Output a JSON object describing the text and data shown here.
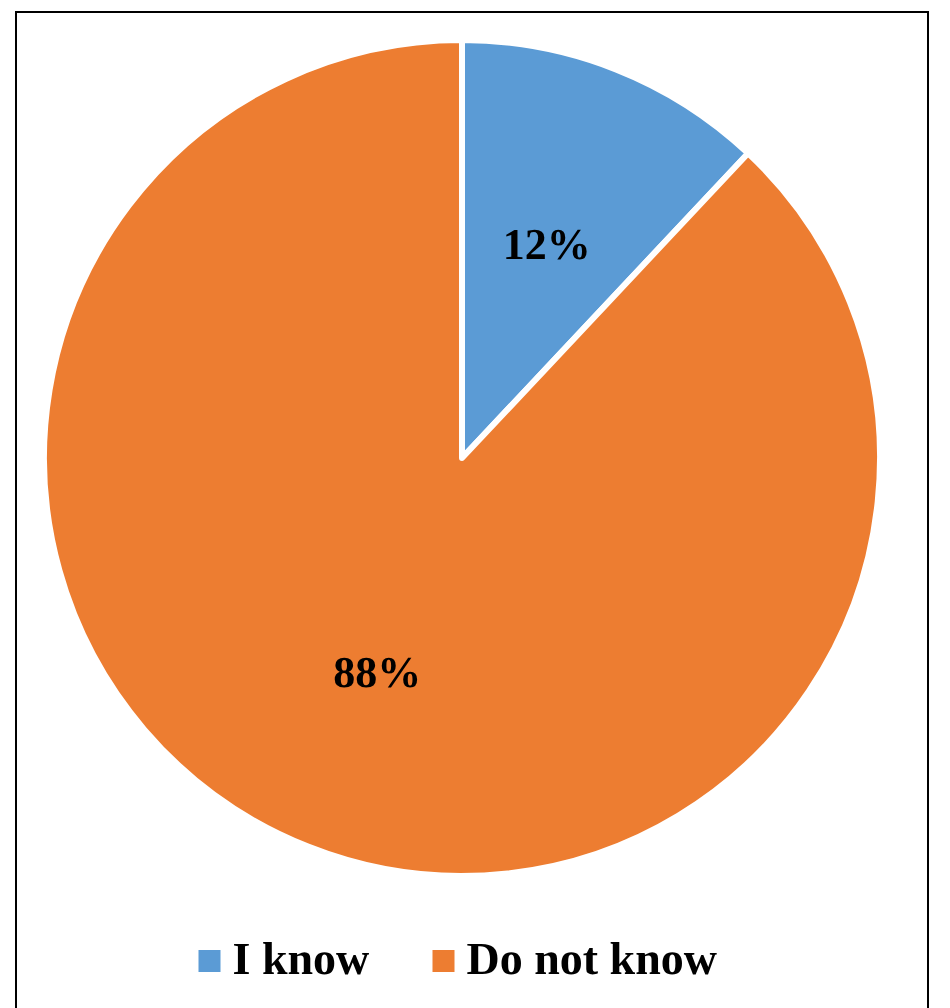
{
  "chart_data": {
    "type": "pie",
    "categories": [
      "I know",
      "Do not know"
    ],
    "values": [
      12,
      88
    ],
    "colors": [
      "#5b9bd5",
      "#ed7d31"
    ],
    "value_labels": [
      "12%",
      "88%"
    ],
    "legend": "bottom"
  }
}
